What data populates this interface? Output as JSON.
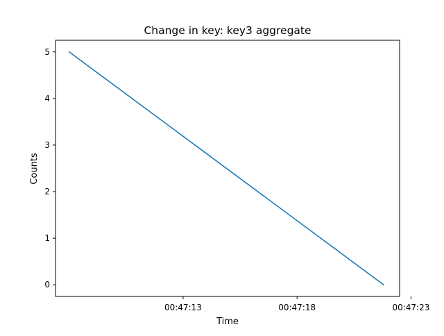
{
  "chart_data": {
    "type": "line",
    "title": "Change in key: key3 aggregate",
    "xlabel": "Time",
    "ylabel": "Counts",
    "x_ticks": [
      "00:47:13",
      "00:47:18",
      "00:47:23"
    ],
    "y_ticks": [
      0,
      1,
      2,
      3,
      4,
      5
    ],
    "xlim": [
      "00:47:07.4",
      "00:47:22.5"
    ],
    "ylim": [
      -0.25,
      5.25
    ],
    "grid": false,
    "legend": "none",
    "series": [
      {
        "color": "#1f77b4",
        "points": [
          {
            "x": "00:47:08.0",
            "y": 5
          },
          {
            "x": "00:47:21.8",
            "y": 0
          }
        ]
      }
    ]
  }
}
